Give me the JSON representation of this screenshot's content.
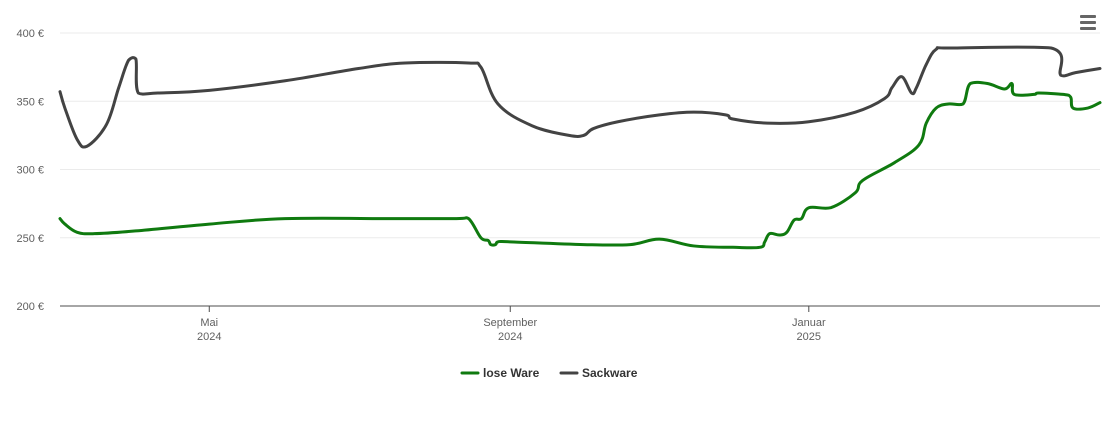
{
  "chart_data": {
    "type": "line",
    "y_ticks": [
      {
        "value": 200,
        "label": "200 €"
      },
      {
        "value": 250,
        "label": "250 €"
      },
      {
        "value": 300,
        "label": "300 €"
      },
      {
        "value": 350,
        "label": "350 €"
      },
      {
        "value": 400,
        "label": "400 €"
      }
    ],
    "ylim": [
      200,
      400
    ],
    "xlim": [
      "2024-03-01",
      "2025-04-30"
    ],
    "x_ticks": [
      {
        "date": "2024-05-01",
        "label_line1": "Mai",
        "label_line2": "2024"
      },
      {
        "date": "2024-09-01",
        "label_line1": "September",
        "label_line2": "2024"
      },
      {
        "date": "2025-01-01",
        "label_line1": "Januar",
        "label_line2": "2025"
      }
    ],
    "grid": true,
    "legend_position": "bottom-center",
    "series": [
      {
        "name": "lose Ware",
        "color": "#0f7a0f",
        "points": [
          [
            "2024-03-01",
            264
          ],
          [
            "2024-03-03",
            260
          ],
          [
            "2024-03-08",
            254
          ],
          [
            "2024-03-15",
            253
          ],
          [
            "2024-04-01",
            255
          ],
          [
            "2024-05-01",
            260
          ],
          [
            "2024-06-01",
            264
          ],
          [
            "2024-07-15",
            264
          ],
          [
            "2024-08-10",
            264
          ],
          [
            "2024-08-15",
            264
          ],
          [
            "2024-08-20",
            250
          ],
          [
            "2024-08-23",
            248
          ],
          [
            "2024-08-24",
            245
          ],
          [
            "2024-08-26",
            245
          ],
          [
            "2024-08-27",
            247
          ],
          [
            "2024-09-01",
            247
          ],
          [
            "2024-10-01",
            245
          ],
          [
            "2024-10-20",
            245
          ],
          [
            "2024-11-01",
            249
          ],
          [
            "2024-11-15",
            244
          ],
          [
            "2024-12-01",
            243
          ],
          [
            "2024-12-12",
            243
          ],
          [
            "2024-12-14",
            247
          ],
          [
            "2024-12-16",
            253
          ],
          [
            "2024-12-20",
            252
          ],
          [
            "2024-12-23",
            254
          ],
          [
            "2024-12-26",
            263
          ],
          [
            "2024-12-29",
            264
          ],
          [
            "2025-01-01",
            272
          ],
          [
            "2025-01-10",
            272
          ],
          [
            "2025-01-20",
            283
          ],
          [
            "2025-01-23",
            292
          ],
          [
            "2025-02-05",
            305
          ],
          [
            "2025-02-15",
            318
          ],
          [
            "2025-02-18",
            334
          ],
          [
            "2025-02-22",
            345
          ],
          [
            "2025-02-27",
            348
          ],
          [
            "2025-03-05",
            348
          ],
          [
            "2025-03-08",
            363
          ],
          [
            "2025-03-15",
            363
          ],
          [
            "2025-03-22",
            359
          ],
          [
            "2025-03-25",
            363
          ],
          [
            "2025-03-26",
            355
          ],
          [
            "2025-04-03",
            355
          ],
          [
            "2025-04-05",
            356
          ],
          [
            "2025-04-15",
            355
          ],
          [
            "2025-04-18",
            353
          ],
          [
            "2025-04-19",
            345
          ],
          [
            "2025-04-25",
            345
          ],
          [
            "2025-04-30",
            349
          ]
        ]
      },
      {
        "name": "Sackware",
        "color": "#434343",
        "points": [
          [
            "2024-03-01",
            357
          ],
          [
            "2024-03-03",
            345
          ],
          [
            "2024-03-08",
            322
          ],
          [
            "2024-03-12",
            317
          ],
          [
            "2024-03-20",
            333
          ],
          [
            "2024-03-25",
            360
          ],
          [
            "2024-03-29",
            380
          ],
          [
            "2024-04-01",
            381
          ],
          [
            "2024-04-02",
            356
          ],
          [
            "2024-04-10",
            356
          ],
          [
            "2024-05-01",
            358
          ],
          [
            "2024-06-01",
            365
          ],
          [
            "2024-07-01",
            374
          ],
          [
            "2024-07-20",
            378
          ],
          [
            "2024-08-15",
            378
          ],
          [
            "2024-08-20",
            375
          ],
          [
            "2024-08-27",
            348
          ],
          [
            "2024-09-10",
            332
          ],
          [
            "2024-09-25",
            325
          ],
          [
            "2024-10-01",
            325
          ],
          [
            "2024-10-05",
            330
          ],
          [
            "2024-10-15",
            335
          ],
          [
            "2024-11-01",
            340
          ],
          [
            "2024-11-15",
            342
          ],
          [
            "2024-11-28",
            340
          ],
          [
            "2024-12-01",
            337
          ],
          [
            "2024-12-15",
            334
          ],
          [
            "2025-01-01",
            335
          ],
          [
            "2025-01-20",
            342
          ],
          [
            "2025-02-01",
            352
          ],
          [
            "2025-02-04",
            360
          ],
          [
            "2025-02-08",
            368
          ],
          [
            "2025-02-12",
            356
          ],
          [
            "2025-02-14",
            360
          ],
          [
            "2025-02-18",
            377
          ],
          [
            "2025-02-22",
            388
          ],
          [
            "2025-02-28",
            389
          ],
          [
            "2025-04-10",
            389
          ],
          [
            "2025-04-14",
            369
          ],
          [
            "2025-04-20",
            371
          ],
          [
            "2025-04-30",
            374
          ]
        ]
      }
    ]
  },
  "toolbar": {
    "menu_icon": "hamburger-menu-icon"
  },
  "colors": {
    "grid": "#ebebeb",
    "axis": "#4d4d4d",
    "tick_label": "#606060",
    "legend_text": "#333333"
  }
}
